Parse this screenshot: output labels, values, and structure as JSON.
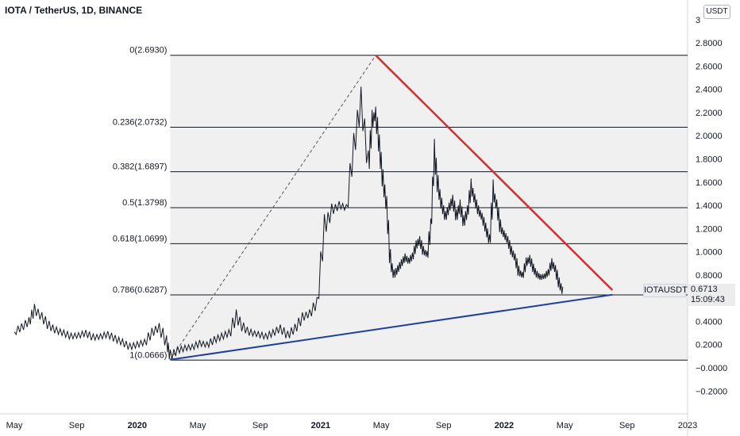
{
  "header": {
    "title": "IOTA / TetherUS, 1D, BINANCE"
  },
  "axis": {
    "unit_label": "USDT"
  },
  "chart_data": {
    "type": "line",
    "title": "IOTA / TetherUS, 1D, BINANCE",
    "xlabel": "",
    "ylabel": "",
    "ylim": [
      -0.28,
      3.06
    ],
    "x_start": 2019.33,
    "x_end": 2023.0,
    "grid": false,
    "y_ticks": [
      {
        "value": 3.0,
        "label": "3"
      },
      {
        "value": 2.8,
        "label": "2.8000"
      },
      {
        "value": 2.6,
        "label": "2.6000"
      },
      {
        "value": 2.4,
        "label": "2.4000"
      },
      {
        "value": 2.2,
        "label": "2.2000"
      },
      {
        "value": 2.0,
        "label": "2.0000"
      },
      {
        "value": 1.8,
        "label": "1.8000"
      },
      {
        "value": 1.6,
        "label": "1.6000"
      },
      {
        "value": 1.4,
        "label": "1.4000"
      },
      {
        "value": 1.2,
        "label": "1.2000"
      },
      {
        "value": 1.0,
        "label": "1.0000"
      },
      {
        "value": 0.8,
        "label": "0.8000"
      },
      {
        "value": 0.4,
        "label": "0.4000"
      },
      {
        "value": 0.2,
        "label": "0.2000"
      },
      {
        "value": 0.0,
        "label": "−0.0000"
      },
      {
        "value": -0.2,
        "label": "−0.2000"
      }
    ],
    "x_ticks": [
      {
        "value": 2019.33,
        "label": "May",
        "bold": false
      },
      {
        "value": 2019.67,
        "label": "Sep",
        "bold": false
      },
      {
        "value": 2020.0,
        "label": "2020",
        "bold": true
      },
      {
        "value": 2020.33,
        "label": "May",
        "bold": false
      },
      {
        "value": 2020.67,
        "label": "Sep",
        "bold": false
      },
      {
        "value": 2021.0,
        "label": "2021",
        "bold": true
      },
      {
        "value": 2021.33,
        "label": "May",
        "bold": false
      },
      {
        "value": 2021.67,
        "label": "Sep",
        "bold": false
      },
      {
        "value": 2022.0,
        "label": "2022",
        "bold": true
      },
      {
        "value": 2022.33,
        "label": "May",
        "bold": false
      },
      {
        "value": 2022.67,
        "label": "Sep",
        "bold": false
      },
      {
        "value": 2023.0,
        "label": "2023",
        "bold": false
      }
    ],
    "fib_levels": [
      {
        "value": 2.693,
        "label": "0(2.6930)"
      },
      {
        "value": 2.0732,
        "label": "0.236(2.0732)"
      },
      {
        "value": 1.6897,
        "label": "0.382(1.6897)"
      },
      {
        "value": 1.3798,
        "label": "0.5(1.3798)"
      },
      {
        "value": 1.0699,
        "label": "0.618(1.0699)"
      },
      {
        "value": 0.6287,
        "label": "0.786(0.6287)"
      },
      {
        "value": 0.0666,
        "label": "1(0.0666)"
      }
    ],
    "fib_fill": "#f0f0f0",
    "trend_up": {
      "points": [
        [
          2020.18,
          0.07
        ],
        [
          2022.59,
          0.63
        ]
      ],
      "color": "#1e3fa0"
    },
    "trend_down": {
      "points": [
        [
          2021.3,
          2.693
        ],
        [
          2022.59,
          0.67
        ]
      ],
      "color": "#d32f2f"
    },
    "fib_anchor": {
      "points": [
        [
          2020.18,
          0.07
        ],
        [
          2021.3,
          2.693
        ]
      ]
    },
    "series": [
      {
        "color": "#131722",
        "x": [
          2019.33,
          2019.37,
          2019.41,
          2019.44,
          2019.48,
          2019.52,
          2019.56,
          2019.6,
          2019.64,
          2019.68,
          2019.72,
          2019.76,
          2019.8,
          2019.84,
          2019.88,
          2019.92,
          2019.96,
          2020.0,
          2020.04,
          2020.08,
          2020.12,
          2020.16,
          2020.18,
          2020.22,
          2020.26,
          2020.3,
          2020.34,
          2020.38,
          2020.42,
          2020.46,
          2020.5,
          2020.54,
          2020.58,
          2020.62,
          2020.66,
          2020.7,
          2020.74,
          2020.78,
          2020.82,
          2020.86,
          2020.9,
          2020.94,
          2020.98,
          2021.02,
          2021.06,
          2021.1,
          2021.14,
          2021.18,
          2021.22,
          2021.26,
          2021.28,
          2021.3,
          2021.32,
          2021.34,
          2021.36,
          2021.38,
          2021.4,
          2021.42,
          2021.44,
          2021.46,
          2021.48,
          2021.5,
          2021.52,
          2021.54,
          2021.56,
          2021.58,
          2021.6,
          2021.62,
          2021.64,
          2021.66,
          2021.68,
          2021.7,
          2021.72,
          2021.74,
          2021.76,
          2021.78,
          2021.8,
          2021.82,
          2021.84,
          2021.86,
          2021.88,
          2021.9,
          2021.92,
          2021.94,
          2021.96,
          2021.98,
          2022.0,
          2022.02,
          2022.04,
          2022.06,
          2022.08,
          2022.1,
          2022.12,
          2022.14,
          2022.16,
          2022.18,
          2022.2,
          2022.22,
          2022.24,
          2022.26,
          2022.28,
          2022.3,
          2022.32
        ],
        "values": [
          0.31,
          0.35,
          0.4,
          0.5,
          0.44,
          0.36,
          0.32,
          0.3,
          0.27,
          0.28,
          0.3,
          0.26,
          0.27,
          0.29,
          0.25,
          0.22,
          0.18,
          0.2,
          0.22,
          0.3,
          0.35,
          0.22,
          0.1,
          0.15,
          0.17,
          0.18,
          0.21,
          0.2,
          0.24,
          0.27,
          0.3,
          0.44,
          0.34,
          0.3,
          0.29,
          0.27,
          0.3,
          0.34,
          0.28,
          0.34,
          0.43,
          0.47,
          0.56,
          1.2,
          1.35,
          1.4,
          1.38,
          1.9,
          2.3,
          1.75,
          2.1,
          2.2,
          1.9,
          1.6,
          1.4,
          0.9,
          0.8,
          0.85,
          0.9,
          0.95,
          0.92,
          0.96,
          1.05,
          1.1,
          1.0,
          0.98,
          1.2,
          1.85,
          1.55,
          1.4,
          1.3,
          1.38,
          1.45,
          1.3,
          1.4,
          1.25,
          1.35,
          1.55,
          1.45,
          1.35,
          1.3,
          1.2,
          1.1,
          1.5,
          1.4,
          1.2,
          1.15,
          1.1,
          1.0,
          0.95,
          0.82,
          0.8,
          0.9,
          0.94,
          0.85,
          0.8,
          0.78,
          0.79,
          0.82,
          0.9,
          0.85,
          0.72,
          0.66
        ]
      }
    ],
    "last_price": {
      "symbol": "IOTAUSDT",
      "value": 0.6713,
      "value_label": "0.6713",
      "countdown": "15:09:43"
    }
  }
}
